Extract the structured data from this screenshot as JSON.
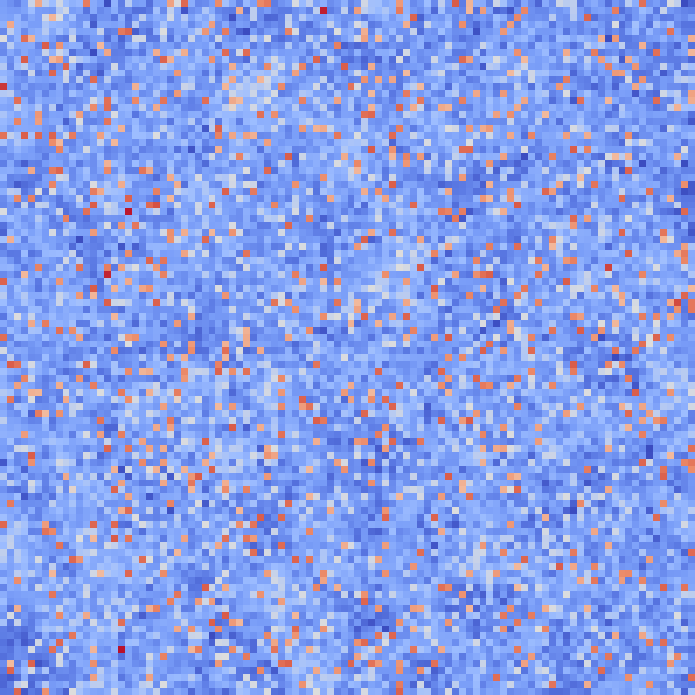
{
  "chart_data": {
    "type": "heatmap",
    "title": "",
    "xlabel": "",
    "ylabel": "",
    "colormap": "coolwarm",
    "colors": {
      "low": "#3b4cc0",
      "mid": "#dddddd",
      "high": "#b40426"
    },
    "rows": 100,
    "cols": 100,
    "value_range": [
      0,
      1
    ],
    "axes_visible": false,
    "grid": false,
    "legend": "none",
    "generation": {
      "seed": 20240611,
      "base_level": 0.27,
      "smooth_amplitude": 0.14,
      "texture_sd": 0.07,
      "hotspot_fraction": 0.085,
      "hotspot_range": [
        0.62,
        0.86
      ],
      "pale_fraction": 0.12,
      "pale_range": [
        0.36,
        0.5
      ]
    },
    "notable_cells": [
      {
        "row": 1,
        "col": 46,
        "value": 0.96
      },
      {
        "row": 30,
        "col": 18,
        "value": 0.97
      },
      {
        "row": 39,
        "col": 15,
        "value": 0.95
      },
      {
        "row": 93,
        "col": 17,
        "value": 0.98
      },
      {
        "row": 38,
        "col": 87,
        "value": 0.9
      },
      {
        "row": 12,
        "col": 0,
        "value": 0.92
      },
      {
        "row": 29,
        "col": 22,
        "value": 0.88
      },
      {
        "row": 43,
        "col": 97,
        "value": 0.89
      }
    ]
  }
}
